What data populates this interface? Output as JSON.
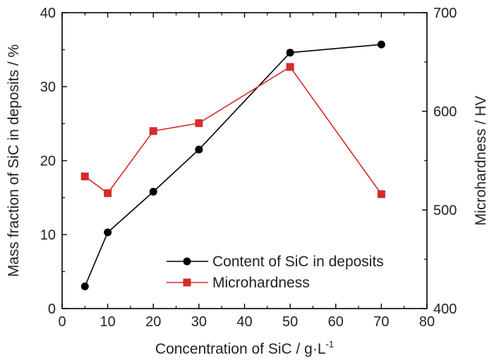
{
  "chart_data": {
    "type": "line",
    "x_axis": {
      "label": "Concentration of SiC / g·L",
      "label_superscript": "-1",
      "range": [
        0,
        80
      ],
      "ticks": [
        0,
        10,
        20,
        30,
        40,
        50,
        60,
        70,
        80
      ]
    },
    "y_left": {
      "label": "Mass fraction of SiC in deposits / %",
      "range": [
        0,
        40
      ],
      "ticks": [
        0,
        10,
        20,
        30,
        40
      ]
    },
    "y_right": {
      "label": "Microhardness / HV",
      "range": [
        400,
        700
      ],
      "ticks": [
        400,
        500,
        600,
        700
      ]
    },
    "series": [
      {
        "name": "Content of SiC in deposits",
        "axis": "left",
        "color": "#000000",
        "marker": "circle",
        "x": [
          5,
          10,
          20,
          30,
          50,
          70
        ],
        "y": [
          3.0,
          10.3,
          15.8,
          21.5,
          34.6,
          35.7
        ]
      },
      {
        "name": "Microhardness",
        "axis": "right",
        "color": "#d62a2a",
        "marker": "square",
        "x": [
          5,
          10,
          20,
          30,
          50,
          70
        ],
        "y": [
          534,
          517,
          580,
          588,
          645,
          516
        ]
      }
    ],
    "legend_position": "bottom-right"
  }
}
